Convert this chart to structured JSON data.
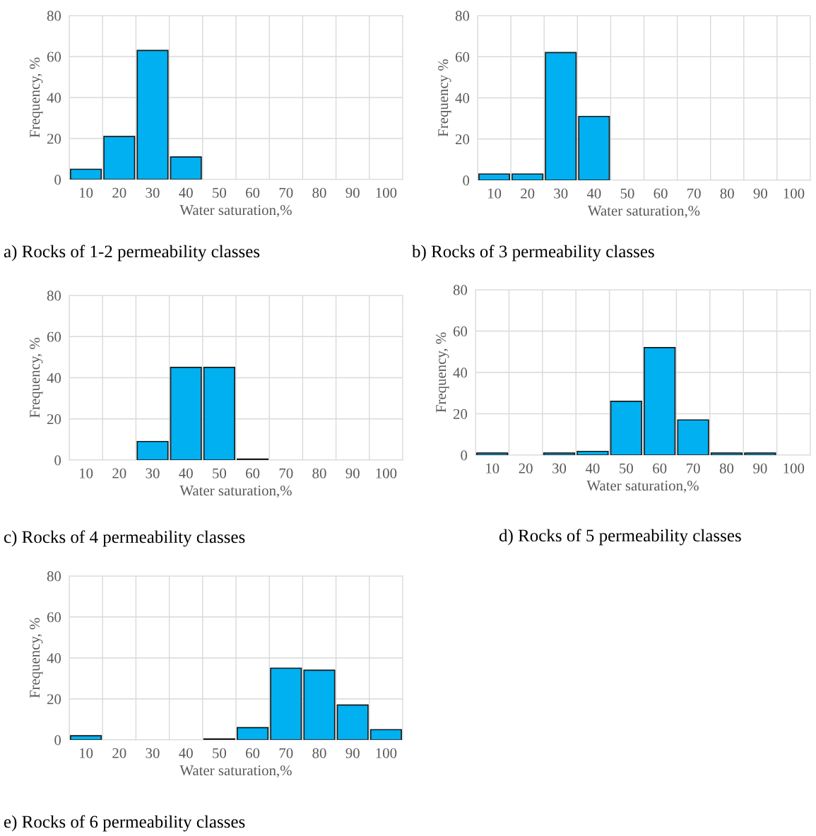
{
  "chart_data": [
    {
      "type": "bar",
      "title": "a) Rocks of 1-2 permeability classes",
      "xlabel": "Water saturation,%",
      "ylabel": "Frequency, %",
      "categories": [
        "10",
        "20",
        "30",
        "40",
        "50",
        "60",
        "70",
        "80",
        "90",
        "100"
      ],
      "values": [
        5,
        21,
        63,
        11,
        0,
        0,
        0,
        0,
        0,
        0
      ],
      "color": "#00b0f0",
      "ylim": [
        0,
        80
      ],
      "yticks": [
        0,
        20,
        40,
        60,
        80
      ],
      "grid": true
    },
    {
      "type": "bar",
      "title": "b) Rocks of 3 permeability classes",
      "xlabel": "Water saturation,%",
      "ylabel": "Frequency %",
      "categories": [
        "10",
        "20",
        "30",
        "40",
        "50",
        "60",
        "70",
        "80",
        "90",
        "100"
      ],
      "values": [
        3,
        3,
        62,
        31,
        0,
        0,
        0,
        0,
        0,
        0
      ],
      "color": "#00b0f0",
      "ylim": [
        0,
        80
      ],
      "yticks": [
        0,
        20,
        40,
        60,
        80
      ],
      "grid": true
    },
    {
      "type": "bar",
      "title": "c) Rocks of 4 permeability classes",
      "xlabel": "Water saturation,%",
      "ylabel": "Frequency, %",
      "categories": [
        "10",
        "20",
        "30",
        "40",
        "50",
        "60",
        "70",
        "80",
        "90",
        "100"
      ],
      "values": [
        0,
        0,
        9,
        45,
        45,
        0.5,
        0,
        0,
        0,
        0
      ],
      "color": "#00b0f0",
      "ylim": [
        0,
        80
      ],
      "yticks": [
        0,
        20,
        40,
        60,
        80
      ],
      "grid": true
    },
    {
      "type": "bar",
      "title": "d) Rocks of 5 permeability classes",
      "xlabel": "Water saturation,%",
      "ylabel": "Frequency, %",
      "categories": [
        "10",
        "20",
        "30",
        "40",
        "50",
        "60",
        "70",
        "80",
        "90",
        "100"
      ],
      "values": [
        1,
        0,
        1,
        1.8,
        26,
        52,
        17,
        1,
        1,
        0
      ],
      "color": "#00b0f0",
      "ylim": [
        0,
        80
      ],
      "yticks": [
        0,
        20,
        40,
        60,
        80
      ],
      "grid": true
    },
    {
      "type": "bar",
      "title": "e) Rocks of 6 permeability classes",
      "xlabel": "Water saturation,%",
      "ylabel": "Frequency, %",
      "categories": [
        "10",
        "20",
        "30",
        "40",
        "50",
        "60",
        "70",
        "80",
        "90",
        "100"
      ],
      "values": [
        2,
        0,
        0,
        0,
        0.5,
        6,
        35,
        34,
        17,
        5
      ],
      "color": "#00b0f0",
      "ylim": [
        0,
        80
      ],
      "yticks": [
        0,
        20,
        40,
        60,
        80
      ],
      "grid": true
    }
  ]
}
